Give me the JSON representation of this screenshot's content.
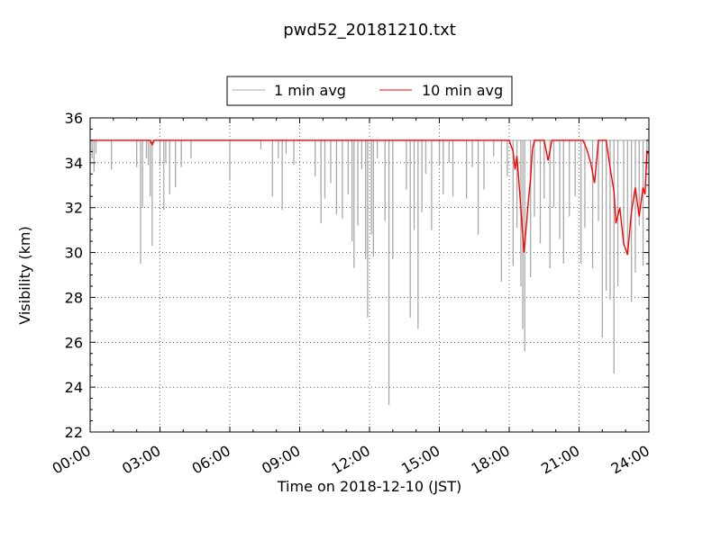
{
  "chart_data": {
    "type": "line",
    "title": "pwd52_20181210.txt",
    "xlabel": "Time on 2018-12-10 (JST)",
    "ylabel": "Visibility (km)",
    "xlim": [
      "00:00",
      "24:00"
    ],
    "ylim": [
      22,
      36
    ],
    "x_ticks": [
      "00:00",
      "03:00",
      "06:00",
      "09:00",
      "12:00",
      "15:00",
      "18:00",
      "21:00",
      "24:00"
    ],
    "y_ticks": [
      "22",
      "24",
      "26",
      "28",
      "30",
      "32",
      "34",
      "36"
    ],
    "grid": true,
    "legend_position": "top-center",
    "series": [
      {
        "name": "1 min avg",
        "color": "#a9a9a9",
        "baseline": 35,
        "dips": [
          [
            "00:05",
            34.2
          ],
          [
            "00:10",
            33.6
          ],
          [
            "00:15",
            34.4
          ],
          [
            "00:55",
            33.7
          ],
          [
            "02:00",
            33.8
          ],
          [
            "02:10",
            29.5
          ],
          [
            "02:15",
            32.0
          ],
          [
            "02:25",
            34.2
          ],
          [
            "02:30",
            33.9
          ],
          [
            "02:35",
            32.5
          ],
          [
            "02:40",
            30.3
          ],
          [
            "03:00",
            33.9
          ],
          [
            "03:10",
            31.9
          ],
          [
            "03:15",
            34.0
          ],
          [
            "03:25",
            32.6
          ],
          [
            "03:40",
            32.9
          ],
          [
            "03:55",
            33.8
          ],
          [
            "04:20",
            34.2
          ],
          [
            "06:00",
            33.2
          ],
          [
            "07:20",
            34.6
          ],
          [
            "07:50",
            32.5
          ],
          [
            "08:05",
            34.2
          ],
          [
            "08:15",
            31.9
          ],
          [
            "08:25",
            34.4
          ],
          [
            "08:45",
            33.9
          ],
          [
            "09:40",
            33.4
          ],
          [
            "09:55",
            31.3
          ],
          [
            "10:05",
            32.4
          ],
          [
            "10:20",
            33.1
          ],
          [
            "10:35",
            31.7
          ],
          [
            "10:50",
            31.5
          ],
          [
            "11:05",
            32.6
          ],
          [
            "11:15",
            30.5
          ],
          [
            "11:20",
            29.3
          ],
          [
            "11:30",
            31.2
          ],
          [
            "11:40",
            33.7
          ],
          [
            "11:50",
            29.7
          ],
          [
            "11:55",
            27.1
          ],
          [
            "12:05",
            30.8
          ],
          [
            "12:10",
            29.8
          ],
          [
            "12:20",
            34.2
          ],
          [
            "12:40",
            31.4
          ],
          [
            "12:50",
            23.2
          ],
          [
            "13:00",
            29.7
          ],
          [
            "13:35",
            32.8
          ],
          [
            "13:45",
            27.1
          ],
          [
            "13:55",
            31.0
          ],
          [
            "14:05",
            26.6
          ],
          [
            "14:15",
            31.8
          ],
          [
            "14:25",
            33.5
          ],
          [
            "14:40",
            31.0
          ],
          [
            "15:00",
            33.9
          ],
          [
            "15:10",
            32.6
          ],
          [
            "15:25",
            34.0
          ],
          [
            "15:35",
            32.5
          ],
          [
            "16:10",
            32.4
          ],
          [
            "16:25",
            33.8
          ],
          [
            "16:40",
            30.8
          ],
          [
            "16:55",
            32.8
          ],
          [
            "17:20",
            34.3
          ],
          [
            "17:40",
            28.7
          ],
          [
            "17:55",
            33.4
          ],
          [
            "18:10",
            29.4
          ],
          [
            "18:20",
            31.1
          ],
          [
            "18:30",
            28.5
          ],
          [
            "18:35",
            26.6
          ],
          [
            "18:40",
            25.6
          ],
          [
            "18:55",
            28.9
          ],
          [
            "19:05",
            31.6
          ],
          [
            "19:20",
            30.4
          ],
          [
            "19:30",
            32.4
          ],
          [
            "19:45",
            29.3
          ],
          [
            "19:55",
            32.0
          ],
          [
            "20:10",
            30.6
          ],
          [
            "20:20",
            29.5
          ],
          [
            "20:35",
            31.6
          ],
          [
            "20:50",
            32.5
          ],
          [
            "21:05",
            29.5
          ],
          [
            "21:15",
            31.1
          ],
          [
            "21:35",
            29.3
          ],
          [
            "21:50",
            31.4
          ],
          [
            "22:00",
            26.2
          ],
          [
            "22:10",
            28.3
          ],
          [
            "22:20",
            27.9
          ],
          [
            "22:30",
            24.6
          ],
          [
            "22:40",
            28.5
          ],
          [
            "22:55",
            30.3
          ],
          [
            "23:05",
            29.9
          ],
          [
            "23:15",
            27.8
          ],
          [
            "23:25",
            29.1
          ],
          [
            "23:35",
            31.2
          ],
          [
            "23:45",
            29.4
          ],
          [
            "23:55",
            33.7
          ]
        ]
      },
      {
        "name": "10 min avg",
        "color": "#ff0000",
        "points": [
          [
            "00:00",
            35.0
          ],
          [
            "02:35",
            35.0
          ],
          [
            "02:40",
            34.8
          ],
          [
            "02:45",
            35.0
          ],
          [
            "18:00",
            35.0
          ],
          [
            "18:10",
            34.5
          ],
          [
            "18:15",
            33.7
          ],
          [
            "18:20",
            34.3
          ],
          [
            "18:30",
            32.0
          ],
          [
            "18:38",
            30.0
          ],
          [
            "18:45",
            31.4
          ],
          [
            "18:50",
            32.4
          ],
          [
            "18:55",
            33.3
          ],
          [
            "19:00",
            34.6
          ],
          [
            "19:05",
            35.0
          ],
          [
            "19:30",
            35.0
          ],
          [
            "19:40",
            34.1
          ],
          [
            "19:50",
            35.0
          ],
          [
            "21:10",
            35.0
          ],
          [
            "21:20",
            34.6
          ],
          [
            "21:30",
            34.0
          ],
          [
            "21:40",
            33.1
          ],
          [
            "21:50",
            35.0
          ],
          [
            "22:10",
            35.0
          ],
          [
            "22:20",
            33.8
          ],
          [
            "22:30",
            32.7
          ],
          [
            "22:35",
            31.3
          ],
          [
            "22:45",
            32.0
          ],
          [
            "22:55",
            30.4
          ],
          [
            "23:05",
            29.9
          ],
          [
            "23:15",
            31.8
          ],
          [
            "23:25",
            32.9
          ],
          [
            "23:35",
            31.6
          ],
          [
            "23:45",
            32.9
          ],
          [
            "23:50",
            32.6
          ],
          [
            "23:55",
            34.5
          ],
          [
            "24:00",
            34.4
          ]
        ]
      }
    ]
  }
}
